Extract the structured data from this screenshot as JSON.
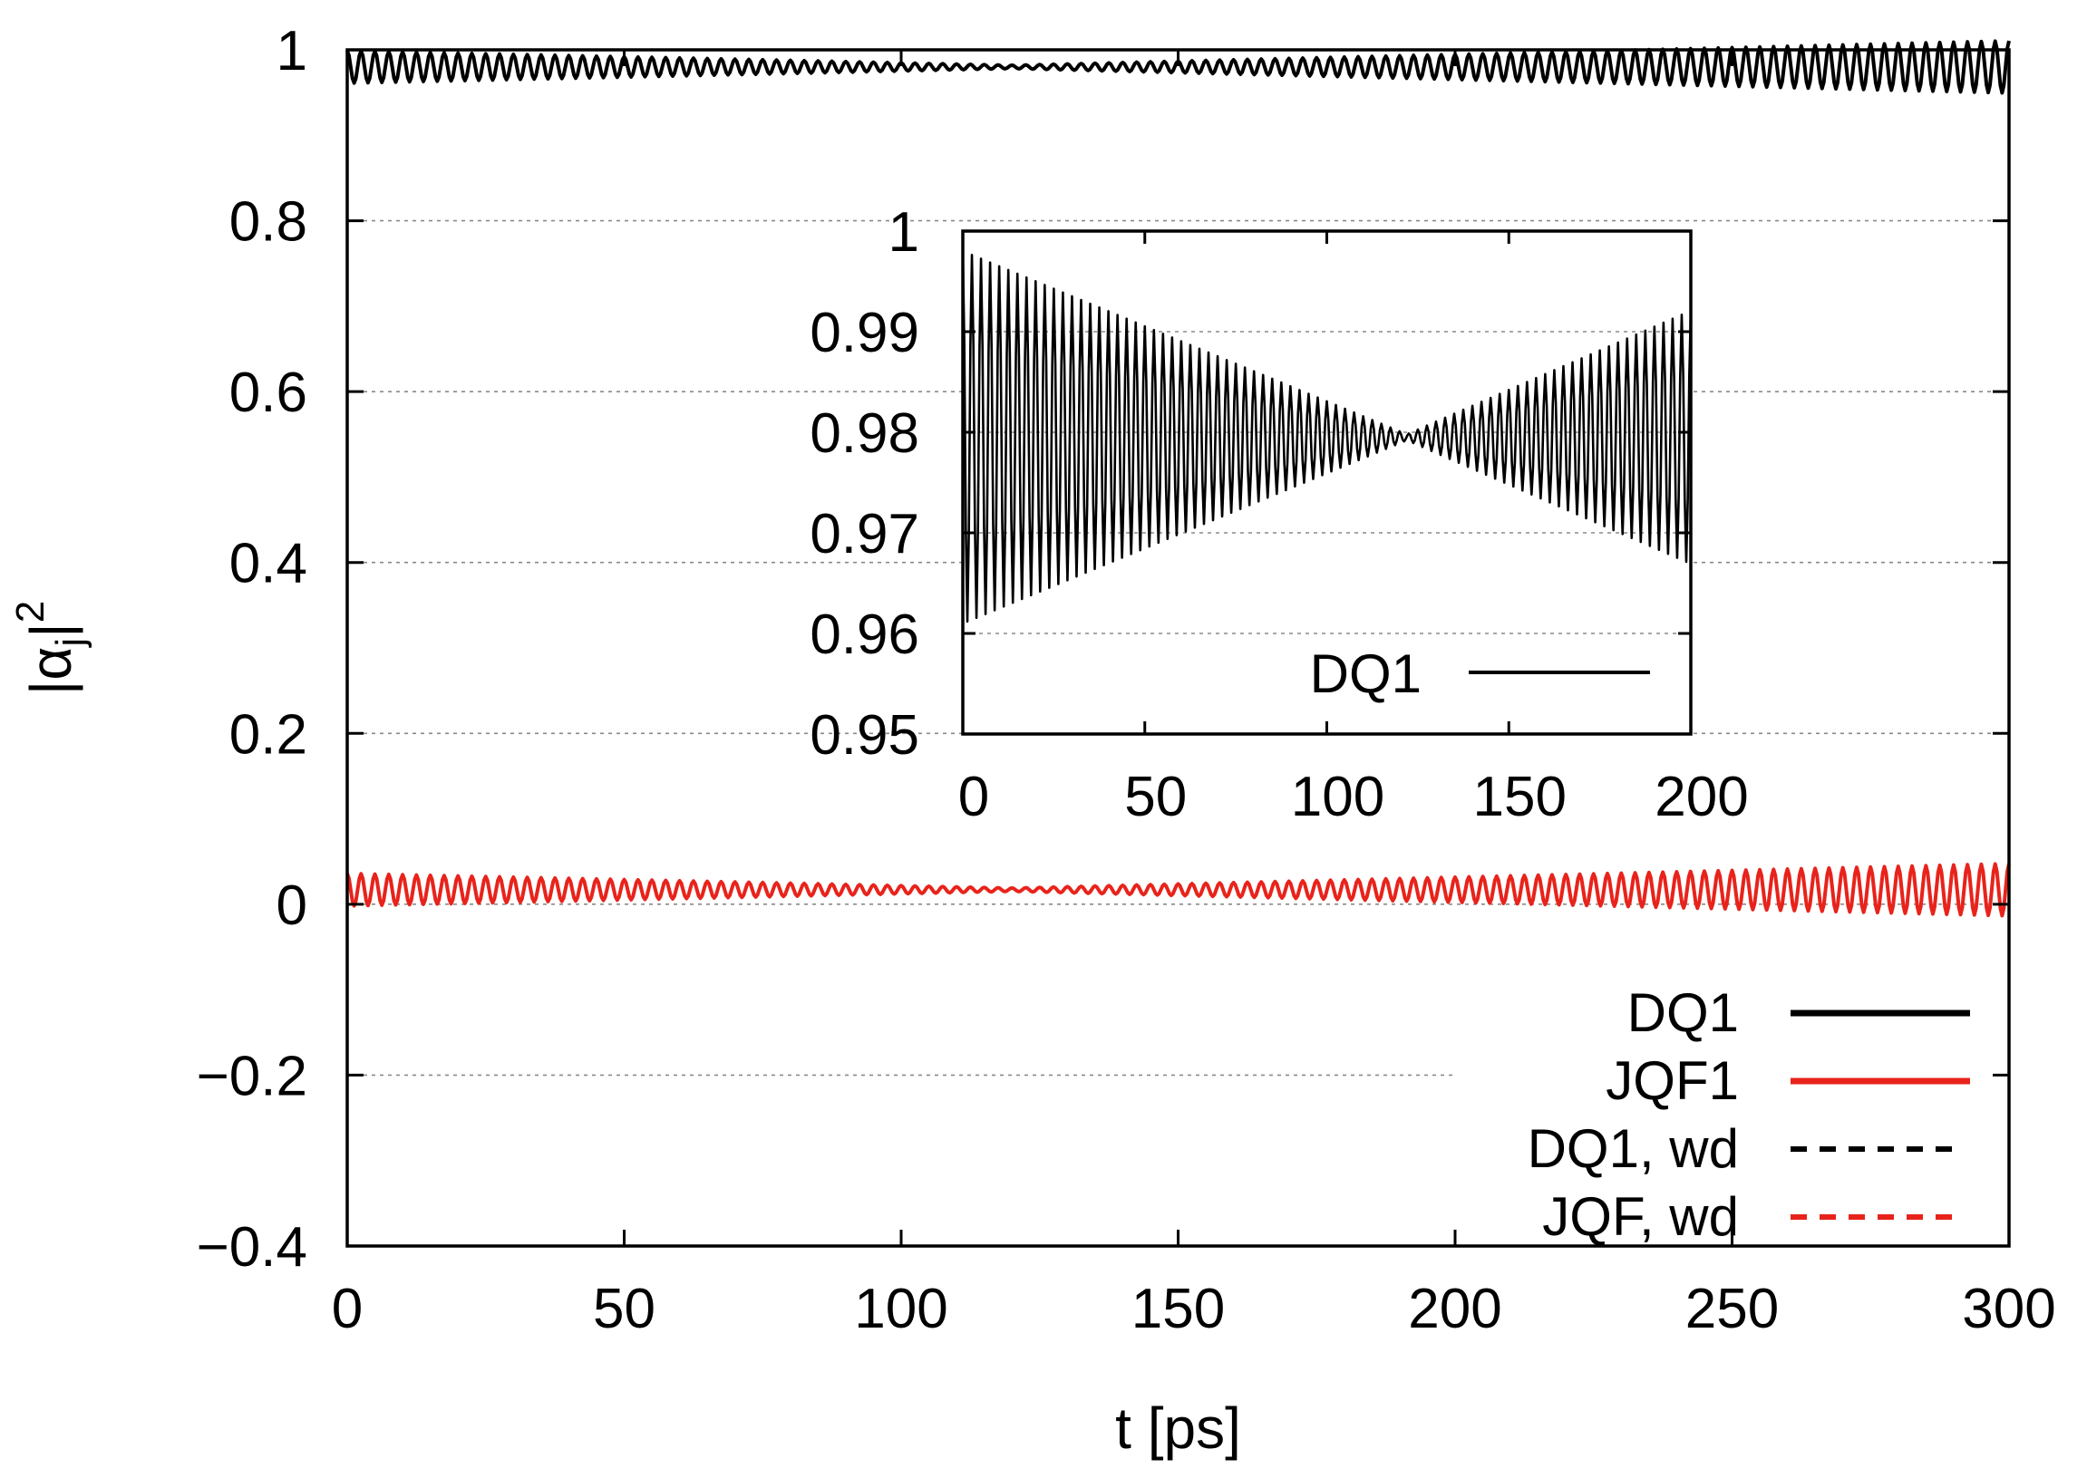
{
  "chart_data": [
    {
      "type": "line",
      "panel": "main",
      "xlabel": "t [ps]",
      "ylabel": "|α_j|^2",
      "ylabel_parts": {
        "base": "|α",
        "sub": "j",
        "close": "|",
        "sup": "2"
      },
      "xlim": [
        0,
        300
      ],
      "ylim": [
        -0.4,
        1
      ],
      "xticks": [
        0,
        50,
        100,
        150,
        200,
        250,
        300
      ],
      "xtick_labels": [
        "0",
        "50",
        "100",
        "150",
        "200",
        "250",
        "300"
      ],
      "yticks": [
        -0.4,
        -0.2,
        0,
        0.2,
        0.4,
        0.6,
        0.8,
        1
      ],
      "ytick_labels": [
        "−0.4",
        "−0.2",
        "0",
        "0.2",
        "0.4",
        "0.6",
        "0.8",
        "1"
      ],
      "grid": true,
      "legend_position": "bottom-right",
      "series": [
        {
          "name": "DQ1",
          "color": "#000000",
          "style": "solid",
          "mean": 0.98,
          "amplitude_start": 0.019,
          "amplitude_min": 0.002,
          "node_t": 120,
          "amplitude_end": 0.021,
          "period_ps": 2.5
        },
        {
          "name": "JQF1",
          "color": "#e8231b",
          "style": "solid",
          "mean": 0.017,
          "amplitude_start": 0.019,
          "amplitude_min": 0.002,
          "node_t": 120,
          "amplitude_end": 0.021,
          "period_ps": 2.5
        },
        {
          "name": "DQ1, wd",
          "color": "#000000",
          "style": "dashed"
        },
        {
          "name": "JQF, wd",
          "color": "#e8231b",
          "style": "dashed"
        }
      ]
    },
    {
      "type": "line",
      "panel": "inset",
      "xlim": [
        0,
        200
      ],
      "ylim": [
        0.95,
        1
      ],
      "xticks": [
        0,
        50,
        100,
        150,
        200
      ],
      "xtick_labels": [
        "0",
        "50",
        "100",
        "150",
        "200"
      ],
      "yticks": [
        0.95,
        0.96,
        0.97,
        0.98,
        0.99,
        1
      ],
      "ytick_labels": [
        "0.95",
        "0.96",
        "0.97",
        "0.98",
        "0.99",
        "1"
      ],
      "grid": true,
      "legend_position": "bottom-right",
      "series": [
        {
          "name": "DQ1",
          "color": "#000000",
          "style": "solid",
          "mean": 0.9795,
          "amplitude_start": 0.0185,
          "amplitude_min": 0.0003,
          "node_t": 122,
          "amplitude_end": 0.0195,
          "period_ps": 2.5
        }
      ]
    }
  ]
}
